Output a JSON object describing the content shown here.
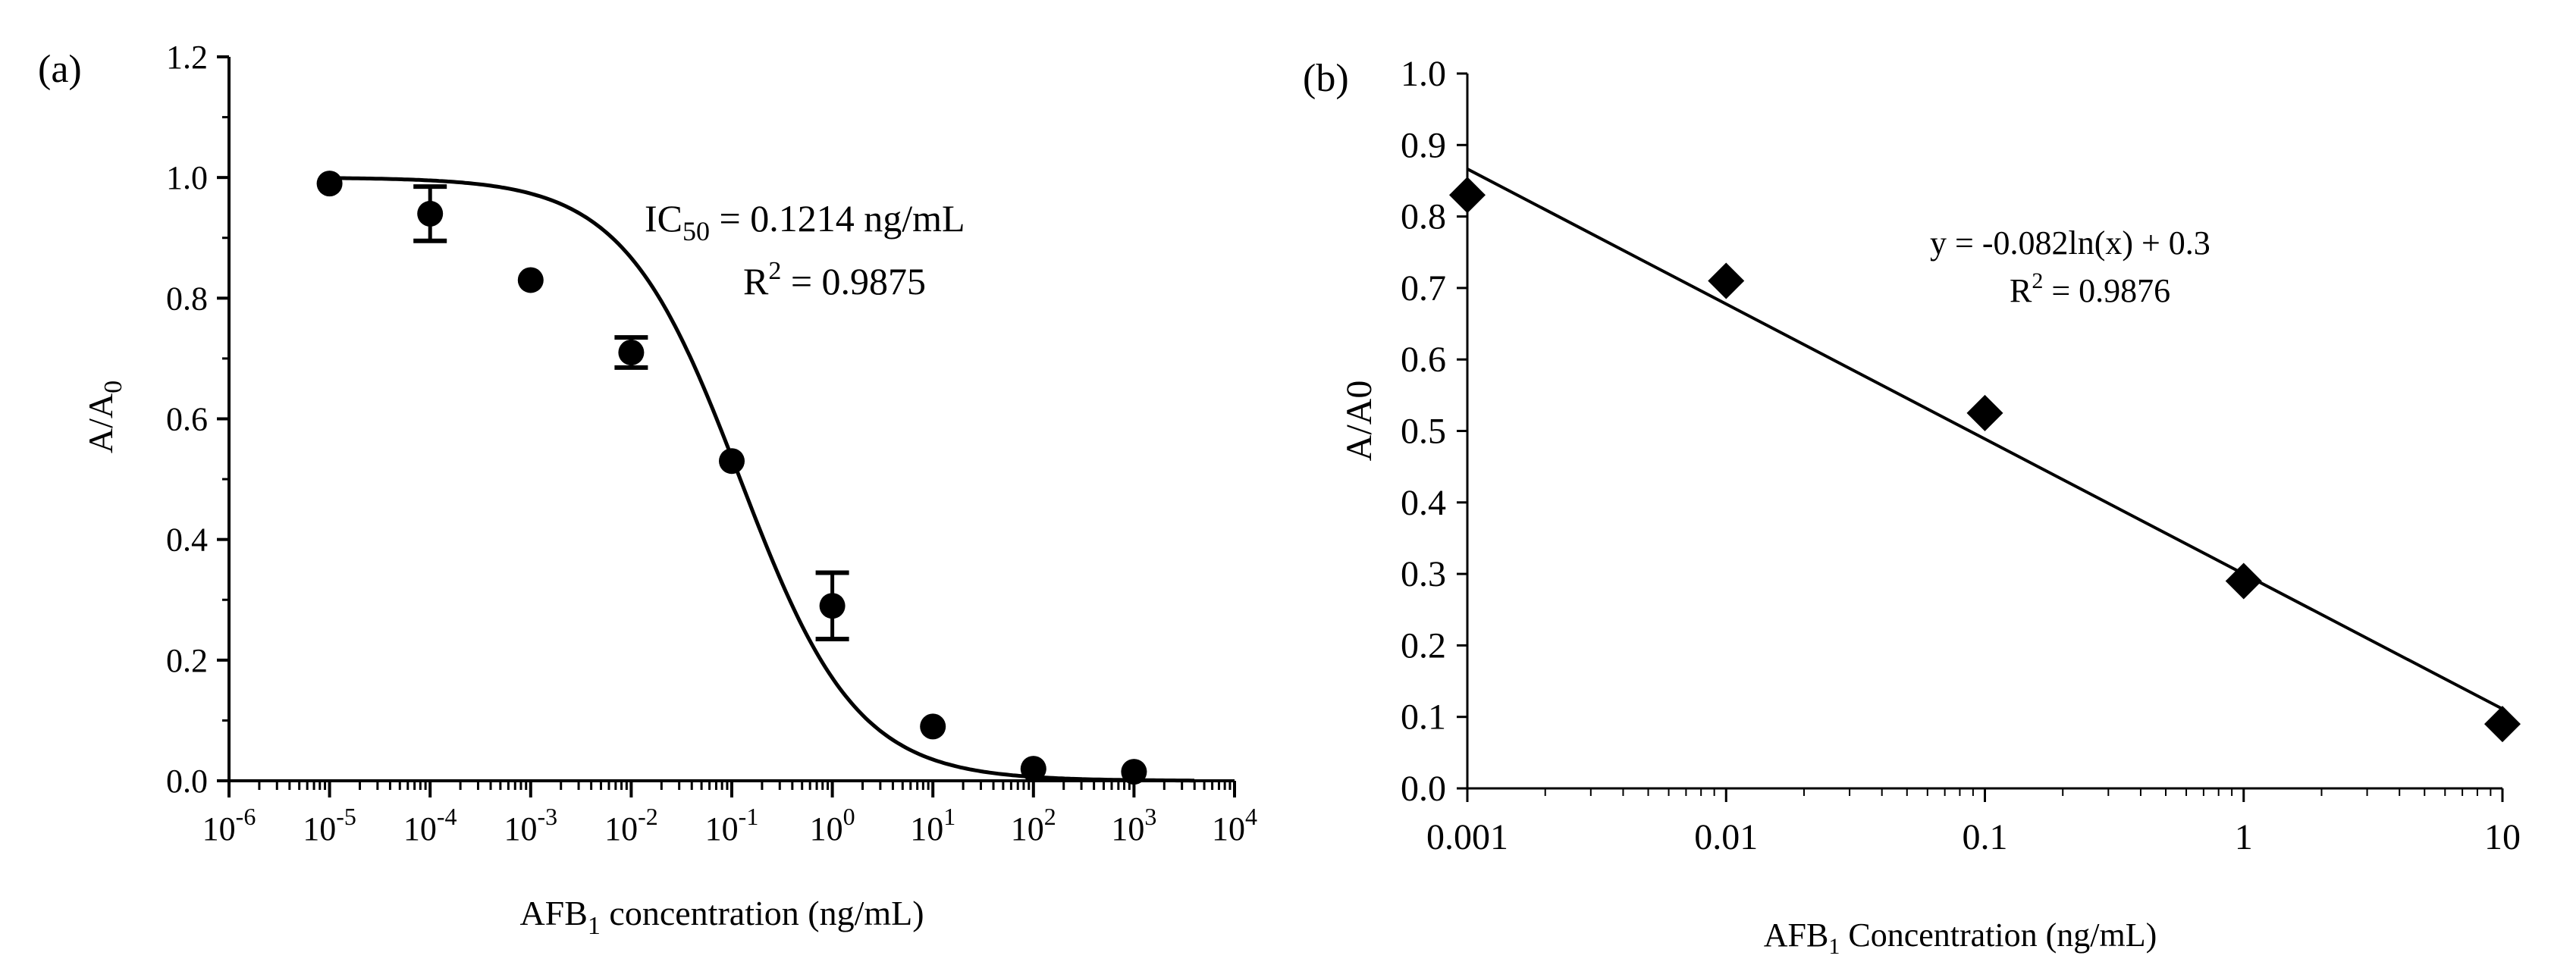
{
  "chart_data": [
    {
      "type": "scatter",
      "panel_label": "(a)",
      "xscale": "log",
      "xlim_exp": [
        -6,
        4
      ],
      "ylim": [
        0.0,
        1.2
      ],
      "xlabel": {
        "main": "AFB",
        "sub": "1",
        "rest": " concentration (ng/mL)"
      },
      "ylabel": {
        "main": "A/A",
        "sub": "0"
      },
      "yticks": [
        "0.0",
        "0.2",
        "0.4",
        "0.6",
        "0.8",
        "1.0",
        "1.2"
      ],
      "xticks": [
        {
          "base": "10",
          "exp": "-6"
        },
        {
          "base": "10",
          "exp": "-5"
        },
        {
          "base": "10",
          "exp": "-4"
        },
        {
          "base": "10",
          "exp": "-3"
        },
        {
          "base": "10",
          "exp": "-2"
        },
        {
          "base": "10",
          "exp": "-1"
        },
        {
          "base": "10",
          "exp": "0"
        },
        {
          "base": "10",
          "exp": "1"
        },
        {
          "base": "10",
          "exp": "2"
        },
        {
          "base": "10",
          "exp": "3"
        },
        {
          "base": "10",
          "exp": "4"
        }
      ],
      "points": [
        {
          "log_x": -5,
          "y": 0.99,
          "err": 0.0
        },
        {
          "log_x": -4,
          "y": 0.94,
          "err": 0.045
        },
        {
          "log_x": -3,
          "y": 0.83,
          "err": 0.0
        },
        {
          "log_x": -2,
          "y": 0.71,
          "err": 0.025
        },
        {
          "log_x": -1,
          "y": 0.53,
          "err": 0.0
        },
        {
          "log_x": 0,
          "y": 0.29,
          "err": 0.055
        },
        {
          "log_x": 1,
          "y": 0.09,
          "err": 0.0
        },
        {
          "log_x": 2,
          "y": 0.02,
          "err": 0.0
        },
        {
          "log_x": 3,
          "y": 0.015,
          "err": 0.0
        }
      ],
      "fit": {
        "model": "four-parameter logistic",
        "top": 1.0,
        "bottom": 0.0,
        "log_ic50": -0.916,
        "hill": 0.75
      },
      "annotation": {
        "line1": {
          "main": "IC",
          "sub": "50",
          "rest": " = 0.1214 ng/mL"
        },
        "line2": {
          "main": "R",
          "sup": "2",
          "rest": " = 0.9875"
        }
      }
    },
    {
      "type": "scatter",
      "panel_label": "(b)",
      "xscale": "log",
      "xlim_exp": [
        -3,
        1
      ],
      "ylim": [
        0.0,
        1.0
      ],
      "xlabel": {
        "main": "AFB",
        "sub": "1",
        "rest": " Concentration (ng/mL)"
      },
      "ylabel": {
        "main": "A/A0"
      },
      "yticks": [
        "0.0",
        "0.1",
        "0.2",
        "0.3",
        "0.4",
        "0.5",
        "0.6",
        "0.7",
        "0.8",
        "0.9",
        "1.0"
      ],
      "xticks": [
        "0.001",
        "0.01",
        "0.1",
        "1",
        "10"
      ],
      "points": [
        {
          "x": 0.001,
          "y": 0.83
        },
        {
          "x": 0.01,
          "y": 0.71
        },
        {
          "x": 0.1,
          "y": 0.525
        },
        {
          "x": 1,
          "y": 0.29
        },
        {
          "x": 10,
          "y": 0.09
        }
      ],
      "trendline": {
        "slope": -0.082,
        "intercept": 0.3
      },
      "annotation": {
        "line1": "y = -0.082ln(x) + 0.3",
        "line2": {
          "main": "R",
          "sup": "2",
          "rest": " = 0.9876"
        }
      },
      "marker_color": "#000000"
    }
  ]
}
